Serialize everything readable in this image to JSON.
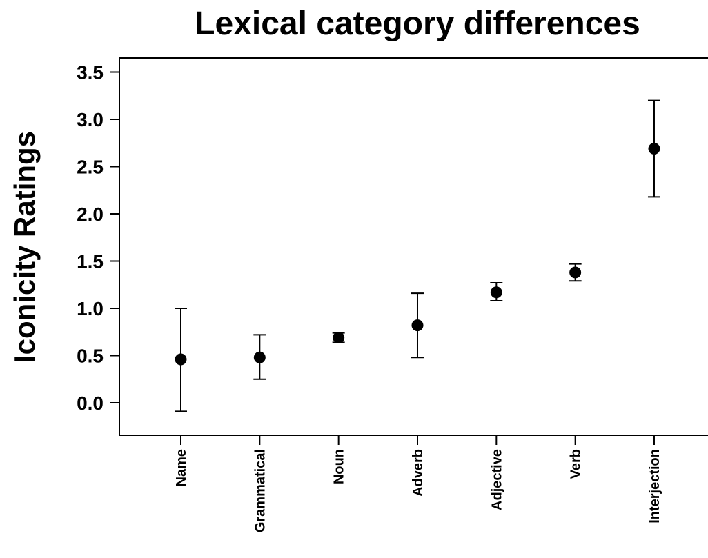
{
  "chart_data": {
    "type": "scatter",
    "title": "Lexical category differences",
    "xlabel": "",
    "ylabel": "Iconicity Ratings",
    "ylim": [
      -0.35,
      3.65
    ],
    "yticks": [
      "0.0",
      "0.5",
      "1.0",
      "1.5",
      "2.0",
      "2.5",
      "3.0",
      "3.5"
    ],
    "categories": [
      "Name",
      "Grammatical",
      "Noun",
      "Adverb",
      "Adjective",
      "Verb",
      "Interjection"
    ],
    "series": [
      {
        "values": [
          0.46,
          0.48,
          0.69,
          0.82,
          1.17,
          1.38,
          2.69
        ],
        "error_low": [
          -0.09,
          0.25,
          0.64,
          0.48,
          1.08,
          1.29,
          2.18
        ],
        "error_high": [
          1.0,
          0.72,
          0.74,
          1.16,
          1.27,
          1.47,
          3.2
        ]
      }
    ],
    "grid": false,
    "legend": "none",
    "colors": {
      "point": "#000000",
      "axis": "#000000",
      "background": "#ffffff"
    }
  }
}
